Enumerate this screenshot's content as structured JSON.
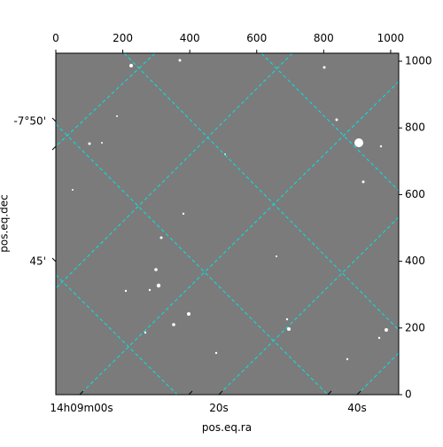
{
  "chart_data": {
    "type": "image",
    "xlabel": "pos.eq.ra",
    "ylabel": "pos.eq.dec",
    "xlim": [
      0,
      1024
    ],
    "xticks": [
      0,
      200,
      400,
      600,
      800,
      1000
    ],
    "ylim": [
      0,
      1024
    ],
    "yticks": [
      0,
      200,
      400,
      600,
      800,
      1000
    ],
    "ra_tick_labels": [
      "14h09m00s",
      "20s",
      "40s"
    ],
    "dec_tick_labels": [
      "-7°50'",
      "45'"
    ],
    "grid_color": "#00e5e5"
  }
}
